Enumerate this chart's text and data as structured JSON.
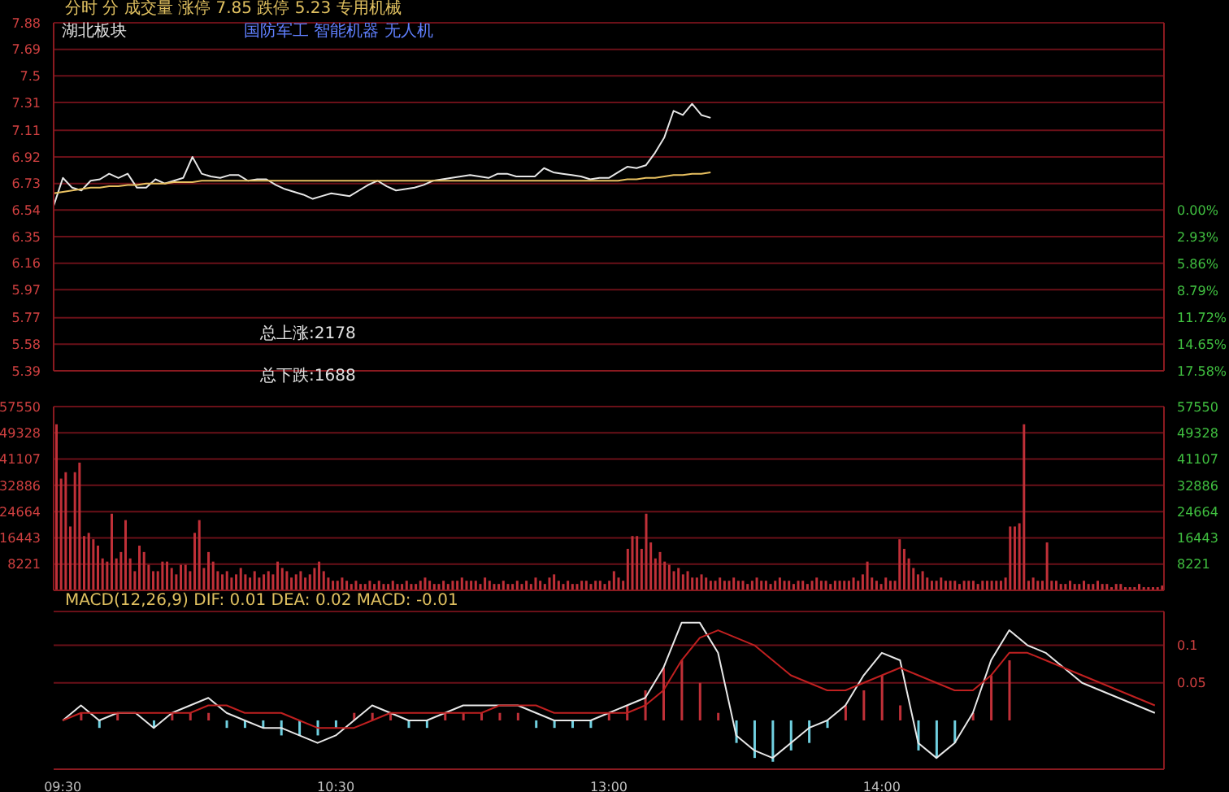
{
  "chart_data": [
    {
      "type": "line",
      "title": "分时 分 成交量 涨停 7.85 跌停 5.23 专用机械",
      "annotations": [
        "湖北板块",
        "国防军工 智能机器 无人机",
        "总上涨:2178",
        "总下跌:1688"
      ],
      "categories": [
        null,
        null,
        null,
        null,
        null,
        null,
        null,
        null,
        null,
        null,
        null,
        null,
        null,
        null,
        null,
        null,
        null,
        null,
        null,
        null,
        null,
        null,
        null,
        null,
        null,
        null,
        null,
        null,
        null,
        null,
        null,
        null,
        null,
        null,
        null,
        null,
        null,
        null,
        null,
        null,
        null,
        null,
        null,
        null,
        null,
        null,
        null,
        null,
        null,
        null,
        null,
        null,
        null,
        null,
        null,
        null,
        null,
        null,
        null,
        null,
        null,
        null,
        null,
        null,
        null,
        null,
        null,
        null,
        null,
        null,
        null,
        null,
        null,
        null,
        null,
        null,
        null,
        null,
        null,
        null,
        null,
        null,
        null,
        null,
        null,
        null,
        null,
        null,
        null,
        null,
        null,
        null,
        null,
        null,
        null,
        null,
        null,
        null,
        null,
        null,
        null,
        null,
        null,
        null,
        null,
        null,
        null,
        null,
        null,
        null,
        null,
        null,
        null,
        null,
        null,
        null,
        null,
        null,
        null,
        null,
        null
      ],
      "ylim": [
        5.39,
        7.88
      ],
      "yticks": [
        5.39,
        5.58,
        5.77,
        5.97,
        6.16,
        6.35,
        6.54,
        6.73,
        6.92,
        7.11,
        7.31,
        7.5,
        7.69,
        7.88
      ],
      "y2lim": [
        -17.58,
        20.49
      ],
      "y2ticks": [
        {
          "value": 0,
          "label": "0.00%"
        },
        {
          "value": -2.93,
          "label": "2.93%"
        },
        {
          "value": -5.86,
          "label": "5.86%"
        },
        {
          "value": -8.79,
          "label": "8.79%"
        },
        {
          "value": -11.72,
          "label": "11.72%"
        },
        {
          "value": -14.65,
          "label": "14.65%"
        },
        {
          "value": -17.58,
          "label": "17.58%"
        }
      ],
      "grid": "y",
      "tick_labels": "y",
      "series": [
        {
          "color": "#e6e6e6",
          "values": [
            6.57,
            6.77,
            6.7,
            6.68,
            6.75,
            6.76,
            6.8,
            6.77,
            6.8,
            6.7,
            6.7,
            6.76,
            6.73,
            6.75,
            6.77,
            6.92,
            6.8,
            6.78,
            6.77,
            6.79,
            6.79,
            6.75,
            6.76,
            6.76,
            6.72,
            6.69,
            6.67,
            6.65,
            6.62,
            6.64,
            6.66,
            6.65,
            6.64,
            6.68,
            6.72,
            6.75,
            6.71,
            6.68,
            6.69,
            6.7,
            6.72,
            6.75,
            6.76,
            6.77,
            6.78,
            6.79,
            6.78,
            6.77,
            6.8,
            6.8,
            6.78,
            6.78,
            6.78,
            6.84,
            6.81,
            6.8,
            6.79,
            6.78,
            6.76,
            6.77,
            6.77,
            6.81,
            6.85,
            6.84,
            6.86,
            6.95,
            7.06,
            7.25,
            7.22,
            7.3,
            7.22,
            7.2,
            null,
            null,
            null,
            null,
            null,
            null,
            null,
            null,
            null,
            null,
            null,
            null,
            null,
            null,
            null,
            null,
            null,
            null,
            null,
            null,
            null,
            null,
            null,
            null,
            null,
            null,
            null,
            null,
            null,
            null,
            null,
            null,
            null,
            null,
            null,
            null,
            null,
            null,
            null,
            null,
            null,
            null,
            null,
            null,
            null,
            null,
            null,
            null,
            null
          ]
        },
        {
          "color": "#e8c060",
          "values": [
            6.66,
            6.67,
            6.68,
            6.69,
            6.7,
            6.7,
            6.71,
            6.71,
            6.72,
            6.72,
            6.73,
            6.73,
            6.73,
            6.74,
            6.74,
            6.74,
            6.75,
            6.75,
            6.75,
            6.75,
            6.75,
            6.75,
            6.75,
            6.75,
            6.75,
            6.75,
            6.75,
            6.75,
            6.75,
            6.75,
            6.75,
            6.75,
            6.75,
            6.75,
            6.75,
            6.75,
            6.75,
            6.75,
            6.75,
            6.75,
            6.75,
            6.75,
            6.75,
            6.75,
            6.75,
            6.75,
            6.75,
            6.75,
            6.75,
            6.75,
            6.75,
            6.75,
            6.75,
            6.75,
            6.75,
            6.75,
            6.75,
            6.75,
            6.75,
            6.75,
            6.75,
            6.75,
            6.76,
            6.76,
            6.77,
            6.77,
            6.78,
            6.79,
            6.79,
            6.8,
            6.8,
            6.81,
            null,
            null,
            null,
            null,
            null,
            null,
            null,
            null,
            null,
            null,
            null,
            null,
            null,
            null,
            null,
            null,
            null,
            null,
            null,
            null,
            null,
            null,
            null,
            null,
            null,
            null,
            null,
            null,
            null,
            null,
            null,
            null,
            null,
            null,
            null,
            null,
            null,
            null,
            null,
            null,
            null,
            null,
            null,
            null,
            null,
            null,
            null,
            null,
            null
          ]
        }
      ]
    },
    {
      "type": "bar",
      "categories": [
        null,
        null,
        null,
        null,
        null,
        null,
        null,
        null,
        null,
        null,
        null,
        null,
        null,
        null,
        null,
        null,
        null,
        null,
        null,
        null,
        null,
        null,
        null,
        null,
        null,
        null,
        null,
        null,
        null,
        null,
        null,
        null,
        null,
        null,
        null,
        null,
        null,
        null,
        null,
        null,
        null,
        null,
        null,
        null,
        null,
        null,
        null,
        null,
        null,
        null,
        null,
        null,
        null,
        null,
        null,
        null,
        null,
        null,
        null,
        null,
        null,
        null,
        null,
        null,
        null,
        null,
        null,
        null,
        null,
        null,
        null,
        null,
        null,
        null,
        null,
        null,
        null,
        null,
        null,
        null,
        null,
        null,
        null,
        null,
        null,
        null,
        null,
        null,
        null,
        null,
        null,
        null,
        null,
        null,
        null,
        null,
        null,
        null,
        null,
        null,
        null,
        null,
        null,
        null,
        null,
        null,
        null,
        null,
        null,
        null,
        null,
        null,
        null,
        null,
        null,
        null,
        null,
        null,
        null,
        null,
        null,
        null,
        null,
        null,
        null,
        null,
        null,
        null,
        null,
        null,
        null,
        null,
        null,
        null,
        null,
        null,
        null,
        null,
        null,
        null,
        null,
        null,
        null,
        null,
        null,
        null,
        null,
        null,
        null,
        null,
        null,
        null,
        null,
        null,
        null,
        null,
        null,
        null,
        null,
        null,
        null,
        null,
        null,
        null,
        null,
        null,
        null,
        null,
        null,
        null,
        null,
        null,
        null,
        null,
        null,
        null,
        null,
        null,
        null,
        null,
        null,
        null,
        null,
        null,
        null,
        null,
        null,
        null,
        null,
        null,
        null,
        null,
        null,
        null,
        null,
        null,
        null,
        null,
        null,
        null,
        null,
        null,
        null,
        null,
        null,
        null,
        null,
        null,
        null,
        null,
        null,
        null,
        null,
        null,
        null,
        null,
        null,
        null,
        null,
        null,
        null,
        null,
        null,
        null,
        null,
        null,
        null,
        null,
        null,
        null,
        null,
        null,
        null,
        null,
        null,
        null,
        null,
        null,
        null,
        null,
        null
      ],
      "ylim": [
        0,
        57550
      ],
      "yticks": [
        8221,
        16443,
        24664,
        32886,
        41107,
        49328,
        57550
      ],
      "y2lim": [
        0,
        57550
      ],
      "y2ticks": [
        8221,
        16443,
        24664,
        32886,
        41107,
        49328,
        57550
      ],
      "grid": "y",
      "tick_labels": "y",
      "color": "#c03038",
      "values": [
        52000,
        35000,
        37000,
        20000,
        37000,
        40000,
        17000,
        18000,
        16000,
        14000,
        10000,
        9000,
        24000,
        10000,
        12000,
        22000,
        10000,
        6000,
        14000,
        12000,
        8000,
        6000,
        6000,
        9000,
        9000,
        7000,
        5000,
        8000,
        8000,
        6000,
        18000,
        22000,
        7000,
        12000,
        9000,
        6000,
        5000,
        6000,
        4000,
        5000,
        7000,
        5000,
        4000,
        6000,
        4000,
        5000,
        6000,
        5000,
        9000,
        7000,
        6000,
        4000,
        5000,
        6000,
        4000,
        5000,
        7000,
        9000,
        6000,
        4000,
        3000,
        3000,
        4000,
        3000,
        2000,
        3000,
        2000,
        2000,
        3000,
        2000,
        3000,
        2000,
        2000,
        3000,
        2000,
        2000,
        3000,
        2000,
        2000,
        3000,
        4000,
        3000,
        2000,
        2000,
        3000,
        2000,
        3000,
        3000,
        4000,
        3000,
        3000,
        3000,
        2000,
        4000,
        3000,
        2000,
        2000,
        3000,
        2000,
        2000,
        3000,
        2000,
        3000,
        2000,
        4000,
        3000,
        2000,
        4000,
        5000,
        3000,
        2000,
        3000,
        2000,
        2000,
        3000,
        3000,
        2000,
        3000,
        3000,
        2000,
        3000,
        6000,
        4000,
        3000,
        13000,
        17000,
        17000,
        13000,
        24000,
        15000,
        10000,
        12000,
        9000,
        8000,
        6000,
        7000,
        5000,
        6000,
        4000,
        4000,
        5000,
        4000,
        3000,
        3000,
        4000,
        3000,
        3000,
        4000,
        3000,
        3000,
        2000,
        3000,
        4000,
        3000,
        3000,
        2000,
        3000,
        4000,
        3000,
        3000,
        2000,
        3000,
        3000,
        2000,
        3000,
        4000,
        3000,
        3000,
        2000,
        3000,
        3000,
        3000,
        3000,
        4000,
        3000,
        5000,
        9000,
        4000,
        3000,
        2000,
        4000,
        3000,
        3000,
        16000,
        13000,
        10000,
        7000,
        5000,
        6000,
        4000,
        3000,
        3000,
        4000,
        3000,
        3000,
        3000,
        2000,
        3000,
        3000,
        3000,
        2000,
        3000,
        3000,
        3000,
        3000,
        3000,
        4000,
        20000,
        20000,
        21000,
        52000,
        3000,
        4000,
        3000,
        3000,
        15000,
        3000,
        3000,
        2000,
        2000,
        3000,
        2000,
        2000,
        3000,
        2000,
        2000,
        3000,
        2000,
        2000,
        1000,
        2000,
        2000,
        1000,
        1000,
        1000,
        2000,
        1000,
        1000,
        1000,
        1000,
        1500
      ]
    },
    {
      "type": "line",
      "title": "MACD(12,26,9) DIF: 0.01 DEA: 0.02 MACD: -0.01",
      "categories": [
        "09:30",
        null,
        null,
        null,
        null,
        null,
        null,
        null,
        null,
        null,
        null,
        null,
        null,
        null,
        null,
        "10:30",
        null,
        null,
        null,
        null,
        null,
        null,
        null,
        null,
        null,
        null,
        null,
        null,
        null,
        null,
        "13:00",
        null,
        null,
        null,
        null,
        null,
        null,
        null,
        null,
        null,
        null,
        null,
        null,
        null,
        null,
        "14:00",
        null,
        null,
        null,
        null,
        null,
        null,
        null,
        null,
        null,
        null,
        null,
        null,
        null,
        null,
        null
      ],
      "ylim": [
        -0.065,
        0.145
      ],
      "yticks": [
        0.05,
        0.1
      ],
      "grid": "y",
      "series": [
        {
          "type": "bar",
          "colors": [
            "#c03038",
            "#c03038",
            "#70d0e0",
            "#c03038",
            "#c03038",
            "#70d0e0",
            "#c03038",
            "#c03038",
            "#c03038",
            "#70d0e0",
            "#70d0e0",
            "#70d0e0",
            "#70d0e0",
            "#70d0e0",
            "#70d0e0",
            "#70d0e0",
            "#c03038",
            "#c03038",
            "#c03038",
            "#70d0e0",
            "#70d0e0",
            "#c03038",
            "#c03038",
            "#c03038",
            "#c03038",
            "#c03038",
            "#70d0e0",
            "#70d0e0",
            "#70d0e0",
            "#70d0e0",
            "#c03038",
            "#c03038",
            "#c03038",
            "#c03038",
            "#c03038",
            "#c03038",
            "#c03038",
            "#70d0e0",
            "#70d0e0",
            "#70d0e0",
            "#70d0e0",
            "#70d0e0",
            "#70d0e0",
            "#c03038",
            "#c03038",
            "#c03038",
            "#c03038",
            "#70d0e0",
            "#70d0e0",
            "#70d0e0",
            "#c03038",
            "#c03038",
            "#c03038",
            "#c03038",
            "#c03038",
            "#c03038",
            "#c03038",
            "#c03038",
            "#c03038",
            "#c03038",
            "#c03038"
          ],
          "values": [
            0,
            0.01,
            -0.01,
            0.01,
            0,
            -0.01,
            0.01,
            0.01,
            0.01,
            -0.01,
            -0.01,
            -0.01,
            -0.02,
            -0.02,
            -0.02,
            -0.01,
            0.01,
            0.01,
            0.01,
            -0.01,
            -0.01,
            0.01,
            0.01,
            0.01,
            0.01,
            0.01,
            -0.01,
            -0.01,
            -0.01,
            -0.01,
            0.01,
            0.02,
            0.04,
            0.07,
            0.08,
            0.05,
            0.01,
            -0.03,
            -0.05,
            -0.055,
            -0.04,
            -0.03,
            -0.01,
            0.02,
            0.04,
            0.06,
            0.02,
            -0.04,
            -0.05,
            -0.03,
            0.01,
            0.06,
            0.08,
            null,
            null,
            null,
            null,
            null,
            null,
            null,
            null
          ]
        },
        {
          "color": "#e8e8e8",
          "values": [
            0,
            0.02,
            0,
            0.01,
            0.01,
            -0.01,
            0.01,
            0.02,
            0.03,
            0.01,
            0,
            -0.01,
            -0.01,
            -0.02,
            -0.03,
            -0.02,
            0,
            0.02,
            0.01,
            0,
            0,
            0.01,
            0.02,
            0.02,
            0.02,
            0.02,
            0.01,
            0,
            0,
            0,
            0.01,
            0.02,
            0.03,
            0.07,
            0.13,
            0.13,
            0.09,
            -0.02,
            -0.04,
            -0.05,
            -0.03,
            -0.01,
            0,
            0.02,
            0.06,
            0.09,
            0.08,
            -0.03,
            -0.05,
            -0.03,
            0.01,
            0.08,
            0.12,
            0.1,
            0.09,
            0.07,
            0.05,
            0.04,
            0.03,
            0.02,
            0.01
          ]
        },
        {
          "color": "#c02020",
          "values": [
            0,
            0.01,
            0.01,
            0.01,
            0.01,
            0.01,
            0.01,
            0.01,
            0.02,
            0.02,
            0.01,
            0.01,
            0.01,
            0,
            -0.01,
            -0.01,
            -0.01,
            0,
            0.01,
            0.01,
            0.01,
            0.01,
            0.01,
            0.01,
            0.02,
            0.02,
            0.02,
            0.01,
            0.01,
            0.01,
            0.01,
            0.01,
            0.02,
            0.04,
            0.08,
            0.11,
            0.12,
            0.11,
            0.1,
            0.08,
            0.06,
            0.05,
            0.04,
            0.04,
            0.05,
            0.06,
            0.07,
            0.06,
            0.05,
            0.04,
            0.04,
            0.06,
            0.09,
            0.09,
            0.08,
            0.07,
            0.06,
            0.05,
            0.04,
            0.03,
            0.02
          ]
        }
      ]
    }
  ]
}
